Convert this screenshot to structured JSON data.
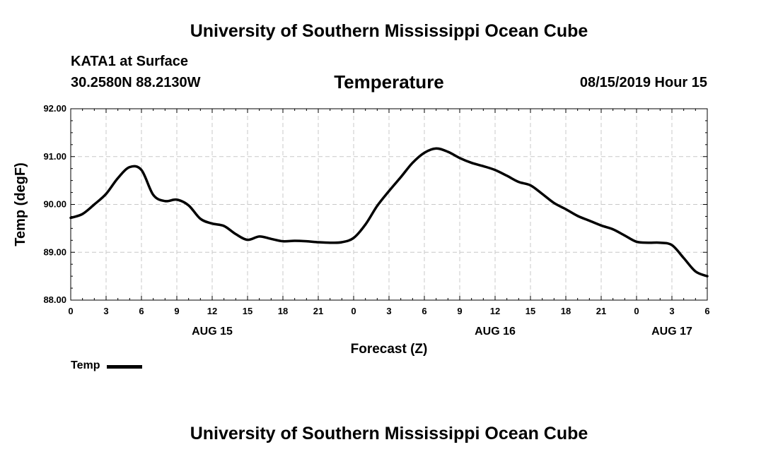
{
  "header": {
    "title": "University of Southern Mississippi Ocean Cube",
    "station": "KATA1 at Surface",
    "coordinates": "30.2580N 88.2130W",
    "variable_title": "Temperature",
    "datetime": "08/15/2019 Hour 15"
  },
  "footer": {
    "title": "University of Southern Mississippi Ocean Cube"
  },
  "legend": {
    "label": "Temp",
    "color": "#000000"
  },
  "chart_data": {
    "type": "line",
    "title": "Temperature",
    "xlabel": "Forecast (Z)",
    "ylabel": "Temp (degF)",
    "xlim": [
      0,
      54
    ],
    "ylim": [
      88.0,
      92.0
    ],
    "x_ticks": [
      0,
      3,
      6,
      9,
      12,
      15,
      18,
      21,
      24,
      27,
      30,
      33,
      36,
      39,
      42,
      45,
      48,
      51,
      54
    ],
    "x_tick_labels": [
      "0",
      "3",
      "6",
      "9",
      "12",
      "15",
      "18",
      "21",
      "0",
      "3",
      "6",
      "9",
      "12",
      "15",
      "18",
      "21",
      "0",
      "3",
      "6"
    ],
    "y_ticks": [
      88.0,
      89.0,
      90.0,
      91.0,
      92.0
    ],
    "y_tick_labels": [
      "88.00",
      "89.00",
      "90.00",
      "91.00",
      "92.00"
    ],
    "day_labels": [
      {
        "x": 12,
        "label": "AUG 15"
      },
      {
        "x": 36,
        "label": "AUG 16"
      },
      {
        "x": 51,
        "label": "AUG 17"
      }
    ],
    "grid": true,
    "series": [
      {
        "name": "Temp",
        "color": "#000000",
        "x": [
          0,
          1,
          2,
          3,
          4,
          5,
          6,
          7,
          8,
          9,
          10,
          11,
          12,
          13,
          14,
          15,
          16,
          17,
          18,
          19,
          20,
          21,
          22,
          23,
          24,
          25,
          26,
          27,
          28,
          29,
          30,
          31,
          32,
          33,
          34,
          35,
          36,
          37,
          38,
          39,
          40,
          41,
          42,
          43,
          44,
          45,
          46,
          47,
          48,
          49,
          50,
          51,
          52,
          53,
          54
        ],
        "values": [
          89.72,
          89.8,
          90.0,
          90.22,
          90.55,
          90.78,
          90.72,
          90.2,
          90.07,
          90.1,
          89.98,
          89.7,
          89.6,
          89.55,
          89.38,
          89.26,
          89.33,
          89.28,
          89.23,
          89.24,
          89.23,
          89.21,
          89.2,
          89.21,
          89.3,
          89.58,
          89.97,
          90.28,
          90.57,
          90.87,
          91.08,
          91.17,
          91.1,
          90.97,
          90.87,
          90.8,
          90.72,
          90.6,
          90.47,
          90.4,
          90.22,
          90.03,
          89.9,
          89.76,
          89.66,
          89.56,
          89.48,
          89.35,
          89.22,
          89.2,
          89.2,
          89.15,
          88.88,
          88.6,
          88.5
        ]
      }
    ]
  }
}
